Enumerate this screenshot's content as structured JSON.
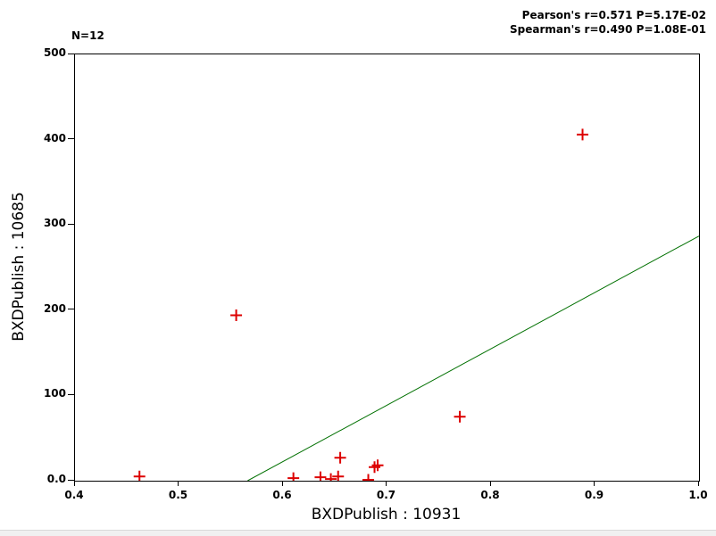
{
  "chart_data": {
    "type": "scatter",
    "title": "",
    "xlabel": "BXDPublish : 10931",
    "ylabel": "BXDPublish : 10685",
    "xlim": [
      0.4,
      1.0
    ],
    "ylim": [
      0,
      500
    ],
    "grid": false,
    "xticks": {
      "values": [
        0.4,
        0.5,
        0.6,
        0.7,
        0.8,
        0.9,
        1.0
      ],
      "labels": [
        "0.4",
        "0.5",
        "0.6",
        "0.7",
        "0.8",
        "0.9",
        "1.0"
      ]
    },
    "yticks": {
      "values": [
        0,
        100,
        200,
        300,
        400,
        500
      ],
      "labels": [
        "0.0",
        "100",
        "200",
        "300",
        "400",
        "500"
      ]
    },
    "n": 12,
    "points": [
      [
        0.462,
        5
      ],
      [
        0.555,
        194
      ],
      [
        0.61,
        3
      ],
      [
        0.636,
        4
      ],
      [
        0.646,
        2
      ],
      [
        0.653,
        5
      ],
      [
        0.655,
        27
      ],
      [
        0.682,
        1
      ],
      [
        0.688,
        16
      ],
      [
        0.691,
        18
      ],
      [
        0.77,
        75
      ],
      [
        0.888,
        406
      ]
    ],
    "regression_line": {
      "x1": 0.566,
      "y1": 0,
      "x2": 1.0,
      "y2": 287
    },
    "marker": {
      "shape": "plus",
      "color": "#dd0000",
      "size": 13,
      "stroke_width": 2
    },
    "line_color": "#007000",
    "annotations": {
      "pearson": "Pearson's r=0.571 P=5.17E-02",
      "spearman": "Spearman's r=0.490 P=1.08E-01",
      "n_label": "N=12"
    }
  }
}
